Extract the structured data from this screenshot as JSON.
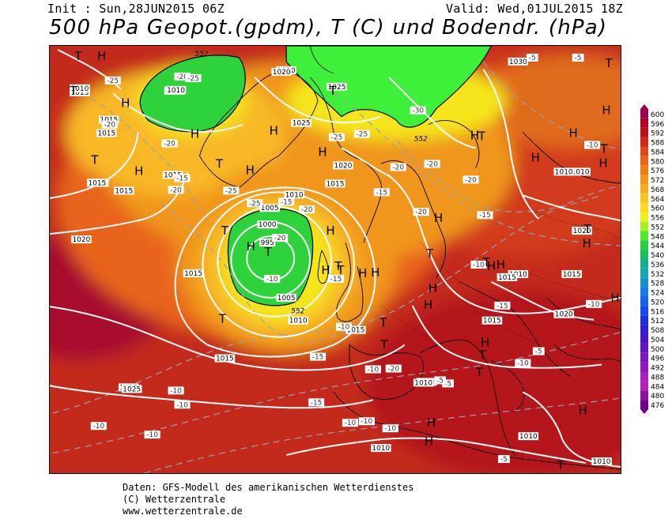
{
  "header": {
    "init": "Init : Sun,28JUN2015 06Z",
    "valid": "Valid: Wed,01JUL2015 18Z",
    "title": "500 hPa Geopot.(gpdm), T (C) und Bodendr. (hPa)"
  },
  "footer": {
    "line1": "Daten: GFS-Modell des amerikanischen Wetterdienstes",
    "line2": "(C) Wetterzentrale",
    "line3": "www.wetterzentrale.de"
  },
  "colors": {
    "ocean_red": "#a8202c",
    "deep_red": "#b4101e",
    "red": "#d23a1a",
    "orange_red": "#e8641a",
    "orange": "#f0961a",
    "light_orange": "#f8b828",
    "yellow": "#f5e61e",
    "green": "#2ed23a",
    "bright_green": "#3ef03a",
    "isobar": "#ffffff",
    "isotherm": "#9aa0b4"
  },
  "legend": {
    "unit": "gpdm",
    "values": [
      "600",
      "596",
      "592",
      "588",
      "584",
      "580",
      "576",
      "572",
      "568",
      "564",
      "560",
      "556",
      "552",
      "548",
      "544",
      "540",
      "536",
      "532",
      "528",
      "524",
      "520",
      "516",
      "512",
      "508",
      "504",
      "500",
      "496",
      "492",
      "488",
      "484",
      "480",
      "476"
    ],
    "colors": [
      "#a00050",
      "#b00028",
      "#c01018",
      "#d02818",
      "#e04818",
      "#ea6418",
      "#f07c18",
      "#f49418",
      "#f8ac1c",
      "#f8c420",
      "#f8dc20",
      "#f0f020",
      "#a8f020",
      "#50e828",
      "#28d040",
      "#18c060",
      "#18b08c",
      "#18a4b0",
      "#1890d0",
      "#1878e8",
      "#1860f0",
      "#1848f0",
      "#2030e0",
      "#3020d0",
      "#4818c8",
      "#6018c0",
      "#7818c0",
      "#9018c0",
      "#a820c0",
      "#b820b0",
      "#9010a0",
      "#700090"
    ]
  },
  "map_labels": {
    "pressure_systems": [
      {
        "type": "T"
      },
      {
        "type": "H"
      },
      {
        "type": "T"
      },
      {
        "type": "H"
      },
      {
        "type": "H"
      },
      {
        "type": "T"
      },
      {
        "type": "H"
      },
      {
        "type": "T"
      },
      {
        "type": "H"
      },
      {
        "type": "H"
      },
      {
        "type": "T"
      },
      {
        "type": "H"
      },
      {
        "type": "T"
      },
      {
        "type": "H"
      },
      {
        "type": "T"
      },
      {
        "type": "T"
      },
      {
        "type": "H"
      },
      {
        "type": "T"
      },
      {
        "type": "H"
      },
      {
        "type": "H"
      },
      {
        "type": "T"
      },
      {
        "type": "H"
      },
      {
        "type": "T"
      },
      {
        "type": "H"
      },
      {
        "type": "H"
      },
      {
        "type": "T"
      },
      {
        "type": "H"
      },
      {
        "type": "T"
      },
      {
        "type": "H"
      },
      {
        "type": "T"
      },
      {
        "type": "H"
      },
      {
        "type": "H"
      },
      {
        "type": "T"
      },
      {
        "type": "T"
      },
      {
        "type": "H"
      },
      {
        "type": "H"
      },
      {
        "type": "T"
      },
      {
        "type": "H"
      },
      {
        "type": "H"
      },
      {
        "type": "H"
      },
      {
        "type": "T"
      },
      {
        "type": "H"
      },
      {
        "type": "T"
      },
      {
        "type": "T"
      },
      {
        "type": "H"
      },
      {
        "type": "H"
      },
      {
        "type": "H"
      },
      {
        "type": "T"
      },
      {
        "type": "H"
      }
    ],
    "isobar_values": [
      "1015",
      "1010",
      "1015",
      "1015",
      "1010",
      "1020",
      "1010",
      "1015",
      "1020",
      "1015",
      "1015",
      "1025",
      "1020",
      "1010",
      "1015",
      "1025",
      "1020",
      "1015",
      "1010",
      "1005",
      "1000",
      "995",
      "1005",
      "1010",
      "1015",
      "1015",
      "1015",
      "1010",
      "1025",
      "1015",
      "1010",
      "1015",
      "1010",
      "1015",
      "1020",
      "1015",
      "1020",
      "1010",
      "1010",
      "1030",
      "1010",
      "1010"
    ],
    "isotherm_values": [
      "-25",
      "-20",
      "-20",
      "-25",
      "-20",
      "-15",
      "-20",
      "-25",
      "-30",
      "-25",
      "-20",
      "-20",
      "-20",
      "-15",
      "-20",
      "-15",
      "-25",
      "-25",
      "-15",
      "-20",
      "-10",
      "-10",
      "-15",
      "-20",
      "-10",
      "-15",
      "-5",
      "-10",
      "-10",
      "-15",
      "-10",
      "-10",
      "-10",
      "-10",
      "-10",
      "-5",
      "-5",
      "-5",
      "-10",
      "-10",
      "-5",
      "-5",
      "-10",
      "-20",
      "-10",
      "-15"
    ],
    "geopot_values": [
      "552",
      "552",
      "552"
    ]
  }
}
